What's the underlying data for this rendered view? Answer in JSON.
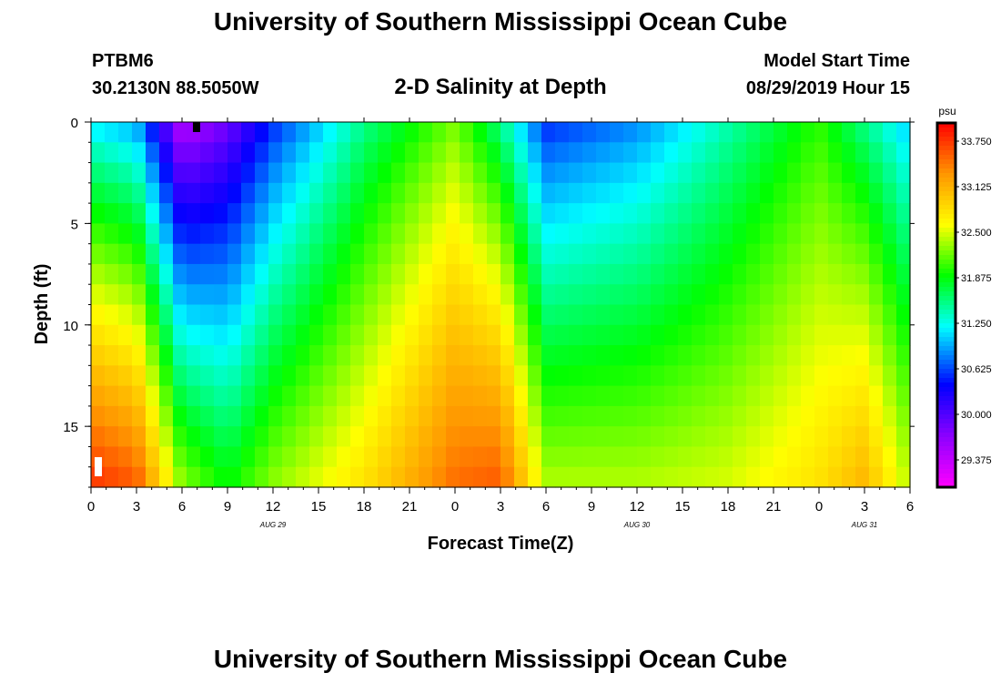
{
  "header": {
    "title": "University of Southern Mississippi Ocean Cube",
    "station": "PTBM6",
    "coords": "30.2130N 88.5050W",
    "chart_title": "2-D Salinity at Depth",
    "model_label": "Model Start Time",
    "model_time": "08/29/2019 Hour 15"
  },
  "footer": {
    "title": "University of Southern Mississippi Ocean Cube"
  },
  "chart_data": {
    "type": "heatmap",
    "title": "2-D Salinity at Depth",
    "xlabel": "Forecast Time(Z)",
    "ylabel": "Depth (ft)",
    "x_ticks": [
      "0",
      "3",
      "6",
      "9",
      "12",
      "15",
      "18",
      "21",
      "0",
      "3",
      "6",
      "9",
      "12",
      "15",
      "18",
      "21",
      "0",
      "3",
      "6"
    ],
    "x_range_hours": [
      0,
      54
    ],
    "date_labels": [
      {
        "hour": 12,
        "text": "AUG 29"
      },
      {
        "hour": 36,
        "text": "AUG 30"
      },
      {
        "hour": 51,
        "text": "AUG 31"
      }
    ],
    "y_ticks": [
      0,
      5,
      10,
      15
    ],
    "ylim": [
      0,
      18
    ],
    "colorbar": {
      "unit": "psu",
      "min": 29.0,
      "max": 34.0,
      "labels": [
        "33.750",
        "33.125",
        "32.500",
        "31.875",
        "31.250",
        "30.625",
        "30.000",
        "29.375"
      ]
    },
    "series_description": "Salinity (psu) vs forecast hour and depth; contours estimated",
    "surface_salinity_by_hour": [
      {
        "hour": 0,
        "value": 31.1
      },
      {
        "hour": 3,
        "value": 30.9
      },
      {
        "hour": 6,
        "value": 29.4
      },
      {
        "hour": 9,
        "value": 29.8
      },
      {
        "hour": 12,
        "value": 30.5
      },
      {
        "hour": 18,
        "value": 31.5
      },
      {
        "hour": 24,
        "value": 32.2
      },
      {
        "hour": 27,
        "value": 31.5
      },
      {
        "hour": 30,
        "value": 30.5
      },
      {
        "hour": 36,
        "value": 30.8
      },
      {
        "hour": 42,
        "value": 31.4
      },
      {
        "hour": 48,
        "value": 32.0
      },
      {
        "hour": 54,
        "value": 31.0
      }
    ],
    "bottom_salinity_by_hour": [
      {
        "hour": 0,
        "value": 33.8
      },
      {
        "hour": 3,
        "value": 33.6
      },
      {
        "hour": 6,
        "value": 32.3
      },
      {
        "hour": 9,
        "value": 31.9
      },
      {
        "hour": 12,
        "value": 32.3
      },
      {
        "hour": 18,
        "value": 32.8
      },
      {
        "hour": 24,
        "value": 33.5
      },
      {
        "hour": 27,
        "value": 33.6
      },
      {
        "hour": 30,
        "value": 32.4
      },
      {
        "hour": 36,
        "value": 32.4
      },
      {
        "hour": 42,
        "value": 32.5
      },
      {
        "hour": 48,
        "value": 32.8
      },
      {
        "hour": 51,
        "value": 33.1
      },
      {
        "hour": 54,
        "value": 32.4
      }
    ]
  }
}
